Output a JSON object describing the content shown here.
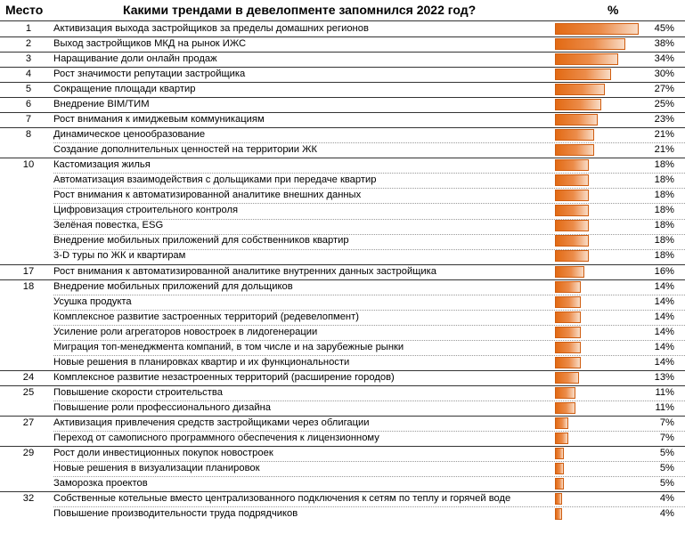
{
  "header": {
    "place": "Место",
    "title": "Какими трендами в девелопменте запомнился 2022 год?",
    "percent": "%"
  },
  "chart_data": {
    "type": "bar",
    "title": "Какими трендами в девелопменте запомнился 2022 год?",
    "unit": "%",
    "xlim": [
      0,
      45
    ],
    "categories": [
      "Активизация выхода застройщиков за пределы домашних регионов",
      "Выход застройщиков МКД на рынок ИЖС",
      "Наращивание доли онлайн продаж",
      "Рост значимости репутации застройщика",
      "Сокращение площади квартир",
      "Внедрение BIM/ТИМ",
      "Рост внимания к имиджевым коммуникациям",
      "Динамическое ценообразование",
      "Создание дополнительных ценностей на территории ЖК",
      "Кастомизация жилья",
      "Автоматизация взаимодействия с дольщиками при передаче квартир",
      "Рост внимания к автоматизированной аналитике внешних данных",
      "Цифровизация строительного контроля",
      "Зелёная повестка, ESG",
      "Внедрение мобильных приложений для собственников квартир",
      "3-D туры по ЖК и квартирам",
      "Рост внимания к автоматизированной аналитике внутренних данных застройщика",
      "Внедрение мобильных приложений для дольщиков",
      "Усушка продукта",
      "Комплексное развитие застроенных территорий (редевелопмент)",
      "Усиление роли агрегаторов новостроек в лидогенерации",
      "Миграция топ-менеджмента компаний, в том числе и на зарубежные рынки",
      "Новые решения в планировках квартир и их функциональности",
      "Комплексное развитие незастроенных территорий (расширение городов)",
      "Повышение скорости строительства",
      "Повышение роли профессионального дизайна",
      "Активизация привлечения средств застройщиками через облигации",
      "Переход от самописного программного обеспечения к лицензионному",
      "Рост доли инвестиционных покупок новостроек",
      "Новые решения в визуализации планировок",
      "Заморозка проектов",
      "Собственные котельные вместо централизованного подключения к сетям по теплу и горячей воде",
      "Повышение производительности труда подрядчиков"
    ],
    "ranks": [
      "1",
      "2",
      "3",
      "4",
      "5",
      "6",
      "7",
      "8",
      "",
      "10",
      "",
      "",
      "",
      "",
      "",
      "",
      "17",
      "18",
      "",
      "",
      "",
      "",
      "",
      "24",
      "25",
      "",
      "27",
      "",
      "29",
      "",
      "",
      "32",
      ""
    ],
    "values": [
      45,
      38,
      34,
      30,
      27,
      25,
      23,
      21,
      21,
      18,
      18,
      18,
      18,
      18,
      18,
      18,
      16,
      14,
      14,
      14,
      14,
      14,
      14,
      13,
      11,
      11,
      7,
      7,
      5,
      5,
      5,
      4,
      4
    ],
    "value_labels": [
      "45%",
      "38%",
      "34%",
      "30%",
      "27%",
      "25%",
      "23%",
      "21%",
      "21%",
      "18%",
      "18%",
      "18%",
      "18%",
      "18%",
      "18%",
      "18%",
      "16%",
      "14%",
      "14%",
      "14%",
      "14%",
      "14%",
      "14%",
      "13%",
      "11%",
      "11%",
      "7%",
      "7%",
      "5%",
      "5%",
      "5%",
      "4%",
      "4%"
    ],
    "colors": {
      "bar": "#e26a14",
      "bar_light": "#f9dcc6",
      "border": "#cf5d10"
    }
  }
}
